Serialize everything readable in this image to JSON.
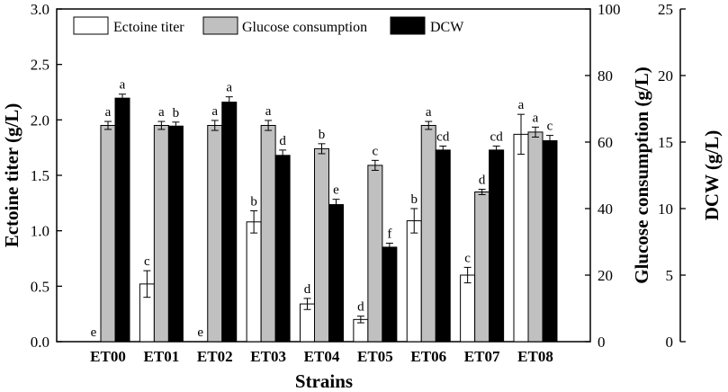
{
  "chart_data": {
    "type": "bar",
    "xlabel": "Strains",
    "categories": [
      "ET00",
      "ET01",
      "ET02",
      "ET03",
      "ET04",
      "ET05",
      "ET06",
      "ET07",
      "ET08"
    ],
    "axes": {
      "left": {
        "label": "Ectoine titer (g/L)",
        "lim": [
          0,
          3.0
        ],
        "ticks": [
          "0.0",
          "0.5",
          "1.0",
          "1.5",
          "2.0",
          "2.5",
          "3.0"
        ]
      },
      "right1": {
        "label": "Glucose consumption (g/L)",
        "lim": [
          0,
          100
        ],
        "ticks": [
          "0",
          "20",
          "40",
          "60",
          "80",
          "100"
        ]
      },
      "right2": {
        "label": "DCW (g/L)",
        "lim": [
          0,
          25
        ],
        "ticks": [
          "0",
          "5",
          "10",
          "15",
          "20",
          "25"
        ]
      }
    },
    "legend_position": "top",
    "series": [
      {
        "name": "Ectoine titer",
        "axis": "left",
        "color": "#ffffff",
        "values": [
          0,
          0.52,
          0,
          1.08,
          0.34,
          0.2,
          1.09,
          0.6,
          1.87
        ],
        "errors": [
          0,
          0.12,
          0,
          0.1,
          0.05,
          0.03,
          0.11,
          0.07,
          0.18
        ],
        "sig": [
          "e",
          "c",
          "e",
          "b",
          "d",
          "d",
          "b",
          "c",
          "a"
        ]
      },
      {
        "name": "Glucose consumption",
        "axis": "right1",
        "color": "#c0c0c0",
        "values": [
          65,
          65,
          65,
          65,
          58,
          53,
          65,
          45,
          63
        ],
        "errors": [
          1.2,
          1.2,
          1.5,
          1.5,
          1.5,
          1.5,
          1.2,
          0.8,
          1.5
        ],
        "sig": [
          "a",
          "a",
          "a",
          "a",
          "b",
          "c",
          "a",
          "d",
          "a"
        ]
      },
      {
        "name": "DCW",
        "axis": "right2",
        "color": "#000000",
        "values": [
          18.3,
          16.2,
          18.0,
          14.0,
          10.3,
          7.1,
          14.4,
          14.4,
          15.1
        ],
        "errors": [
          0.3,
          0.3,
          0.4,
          0.4,
          0.4,
          0.3,
          0.3,
          0.3,
          0.4
        ],
        "sig": [
          "a",
          "b",
          "a",
          "d",
          "e",
          "f",
          "cd",
          "cd",
          "c"
        ]
      }
    ]
  }
}
